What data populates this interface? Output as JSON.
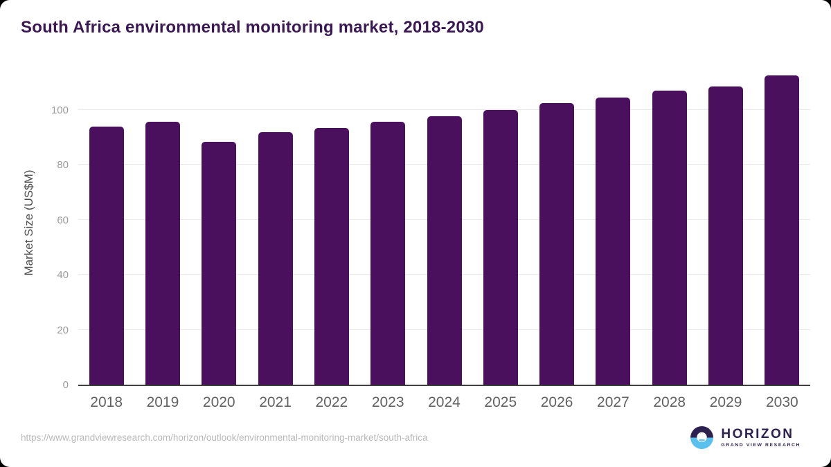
{
  "title": "South Africa environmental monitoring market, 2018-2030",
  "footer": {
    "source_url": "https://www.grandviewresearch.com/horizon/outlook/environmental-monitoring-market/south-africa",
    "logo": {
      "name": "HORIZON",
      "subtitle": "GRAND VIEW RESEARCH"
    }
  },
  "colors": {
    "bar": "#4a105e",
    "title": "#3a1853",
    "axis_line": "#404040",
    "gridline": "#e9e9e9",
    "y_tick": "#9b9b9b",
    "x_tick": "#626262",
    "logo_dark": "#2d2150",
    "logo_blue": "#5ac0ee"
  },
  "chart_data": {
    "type": "bar",
    "categories": [
      "2018",
      "2019",
      "2020",
      "2021",
      "2022",
      "2023",
      "2024",
      "2025",
      "2026",
      "2027",
      "2028",
      "2029",
      "2030"
    ],
    "values": [
      94.0,
      95.8,
      88.5,
      92.0,
      93.5,
      95.6,
      97.8,
      100.0,
      102.4,
      104.6,
      107.0,
      108.5,
      112.5
    ],
    "title": "South Africa environmental monitoring market, 2018-2030",
    "xlabel": "",
    "ylabel": "Market Size (US$M)",
    "yticks": [
      0,
      20,
      40,
      60,
      80,
      100
    ],
    "ylim": [
      0,
      116
    ],
    "grid": true,
    "legend_position": "none",
    "bar_corner_radius": "rounded-top"
  }
}
